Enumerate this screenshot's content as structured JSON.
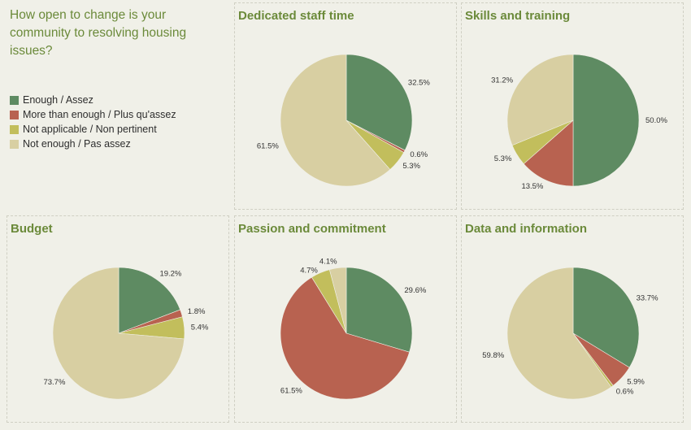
{
  "title": "How open to change is your community to resolving housing issues?",
  "legend": [
    {
      "label": "Enough / Assez",
      "color": "#5e8b62"
    },
    {
      "label": "More than enough / Plus qu'assez",
      "color": "#b86250"
    },
    {
      "label": "Not applicable / Non pertinent",
      "color": "#c2be5c"
    },
    {
      "label": "Not enough / Pas assez",
      "color": "#d8cfa2"
    }
  ],
  "chart_data": [
    {
      "type": "pie",
      "title": "Dedicated staff time",
      "series": [
        "Enough / Assez",
        "More than enough / Plus qu'assez",
        "Not applicable / Non pertinent",
        "Not enough / Pas assez"
      ],
      "values": [
        32.5,
        0.6,
        5.3,
        61.5
      ],
      "labels": [
        "32.5%",
        "0.6%",
        "5.3%",
        "61.5%"
      ]
    },
    {
      "type": "pie",
      "title": "Skills and training",
      "series": [
        "Enough / Assez",
        "More than enough / Plus qu'assez",
        "Not applicable / Non pertinent",
        "Not enough / Pas assez"
      ],
      "values": [
        50.0,
        13.5,
        5.3,
        31.2
      ],
      "labels": [
        "50.0%",
        "13.5%",
        "5.3%",
        "31.2%"
      ]
    },
    {
      "type": "pie",
      "title": "Budget",
      "series": [
        "Enough / Assez",
        "More than enough / Plus qu'assez",
        "Not applicable / Non pertinent",
        "Not enough / Pas assez"
      ],
      "values": [
        19.2,
        1.8,
        5.4,
        73.7
      ],
      "labels": [
        "19.2%",
        "1.8%",
        "5.4%",
        "73.7%"
      ]
    },
    {
      "type": "pie",
      "title": "Passion and commitment",
      "series": [
        "Enough / Assez",
        "More than enough / Plus qu'assez",
        "Not applicable / Non pertinent",
        "Not enough / Pas assez"
      ],
      "values": [
        29.6,
        61.5,
        4.7,
        4.1
      ],
      "labels": [
        "29.6%",
        "61.5%",
        "4.7%",
        "4.1%"
      ]
    },
    {
      "type": "pie",
      "title": "Data and information",
      "series": [
        "Enough / Assez",
        "More than enough / Plus qu'assez",
        "Not applicable / Non pertinent",
        "Not enough / Pas assez"
      ],
      "values": [
        33.7,
        5.9,
        0.6,
        59.8
      ],
      "labels": [
        "33.7%",
        "5.9%",
        "0.6%",
        "59.8%"
      ]
    }
  ]
}
